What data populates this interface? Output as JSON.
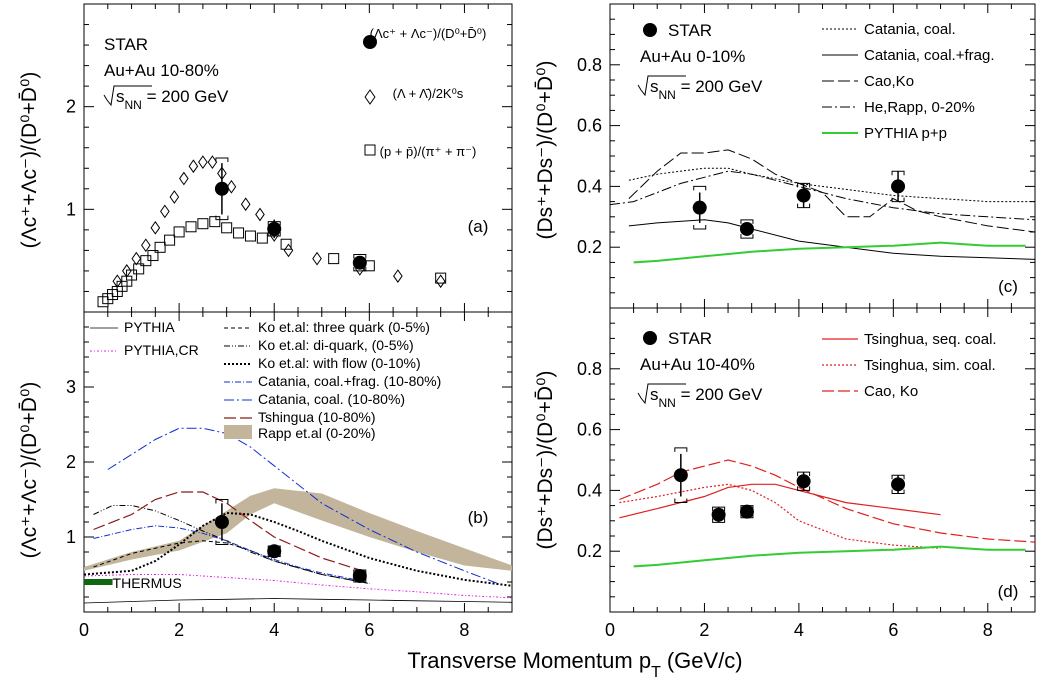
{
  "figure": {
    "xlabel_main": "Transverse Momentum p",
    "xlabel_sub": "T",
    "xlabel_unit": "(GeV/c)"
  },
  "chart_data": [
    {
      "id": "a",
      "type": "scatter",
      "panel_label": "(a)",
      "ylabel": "(Λc⁺+Λc⁻)/(D⁰+D̄⁰)",
      "xlim": [
        0,
        9
      ],
      "ylim": [
        0,
        3
      ],
      "x_ticks": [
        0,
        2,
        4,
        6,
        8
      ],
      "y_ticks": [
        1,
        2
      ],
      "text": {
        "experiment": "STAR",
        "system": "Au+Au 10-80%",
        "energy": "√sNN = 200 GeV"
      },
      "legend": [
        {
          "marker": "filled-circle",
          "label": "(Λc⁺ + Λc⁻)/(D⁰+D̄⁰)"
        },
        {
          "marker": "open-diamond",
          "label": "(Λ + Λ̄)/2K⁰s"
        },
        {
          "marker": "open-square",
          "label": "(p + p̄)/(π⁺ + π⁻)"
        }
      ],
      "series": [
        {
          "name": "(Λc⁺ + Λc⁻)/(D⁰+D̄⁰)",
          "marker": "filled-circle",
          "x": [
            2.9,
            4.0,
            5.8
          ],
          "y": [
            1.2,
            0.81,
            0.48
          ],
          "stat_err": [
            0.25,
            0.09,
            0.06
          ],
          "sys_err": [
            0.3,
            0.07,
            0.08
          ]
        },
        {
          "name": "(Λ + Λ̄)/2K⁰s",
          "marker": "open-diamond",
          "x": [
            0.7,
            0.9,
            1.1,
            1.3,
            1.5,
            1.7,
            1.9,
            2.1,
            2.3,
            2.5,
            2.7,
            2.9,
            3.1,
            3.4,
            3.7,
            4.0,
            4.3,
            4.9,
            5.8,
            6.6,
            7.5
          ],
          "y": [
            0.3,
            0.4,
            0.52,
            0.65,
            0.82,
            0.98,
            1.12,
            1.3,
            1.42,
            1.46,
            1.46,
            1.35,
            1.22,
            1.05,
            0.95,
            0.75,
            0.6,
            0.52,
            0.42,
            0.35,
            0.3
          ]
        },
        {
          "name": "(p + p̄)/(π⁺ + π⁻)",
          "marker": "open-square",
          "x": [
            0.4,
            0.5,
            0.6,
            0.7,
            0.8,
            0.9,
            1.0,
            1.15,
            1.3,
            1.45,
            1.6,
            1.8,
            2.0,
            2.25,
            2.5,
            2.75,
            3.0,
            3.25,
            3.5,
            3.75,
            4.25,
            5.25,
            6.0,
            7.5
          ],
          "y": [
            0.1,
            0.13,
            0.17,
            0.2,
            0.25,
            0.3,
            0.36,
            0.42,
            0.5,
            0.55,
            0.63,
            0.7,
            0.78,
            0.83,
            0.86,
            0.88,
            0.82,
            0.77,
            0.74,
            0.72,
            0.66,
            0.52,
            0.45,
            0.33
          ]
        }
      ]
    },
    {
      "id": "b",
      "type": "line",
      "panel_label": "(b)",
      "ylabel": "(Λc⁺+Λc⁻)/(D⁰+D̄⁰)",
      "xlim": [
        0,
        9
      ],
      "ylim": [
        0,
        4
      ],
      "x_ticks": [
        0,
        2,
        4,
        6,
        8
      ],
      "y_ticks": [
        1,
        2,
        3
      ],
      "thermus": {
        "label": "THERMUS",
        "y": 0.4,
        "x_range": [
          0,
          0.6
        ]
      },
      "data_points": {
        "x": [
          2.9,
          4.0,
          5.8
        ],
        "y": [
          1.2,
          0.81,
          0.48
        ],
        "stat_err": [
          0.25,
          0.09,
          0.06
        ],
        "sys_err": [
          0.3,
          0.07,
          0.08
        ]
      },
      "rapp_band": {
        "name": "Rapp et.al (0-20%)",
        "x": [
          0.0,
          1.0,
          2.0,
          3.0,
          3.5,
          4.0,
          5.0,
          6.0,
          7.0,
          8.0,
          9.0
        ],
        "y_low": [
          0.55,
          0.7,
          0.82,
          1.05,
          1.3,
          1.45,
          1.22,
          1.0,
          0.8,
          0.62,
          0.55
        ],
        "y_high": [
          0.6,
          0.8,
          0.95,
          1.35,
          1.55,
          1.65,
          1.58,
          1.32,
          1.08,
          0.85,
          0.62
        ]
      },
      "series": [
        {
          "name": "PYTHIA",
          "color": "#000000",
          "dash": "solid",
          "width": 0.8,
          "x": [
            0,
            1,
            2,
            3,
            4,
            5,
            6,
            7,
            8,
            9
          ],
          "y": [
            0.12,
            0.14,
            0.16,
            0.17,
            0.18,
            0.17,
            0.16,
            0.15,
            0.14,
            0.13
          ]
        },
        {
          "name": "PYTHIA,CR",
          "color": "#e020e0",
          "dash": "2,2,1,2",
          "width": 1,
          "x": [
            0,
            1,
            2,
            3,
            4,
            5,
            6,
            7,
            8,
            9
          ],
          "y": [
            0.48,
            0.5,
            0.5,
            0.46,
            0.42,
            0.36,
            0.31,
            0.27,
            0.22,
            0.19
          ]
        },
        {
          "name": "Ko et.al: three quark (0-5%)",
          "color": "#000000",
          "dash": "4,3",
          "width": 1,
          "x": [
            0.2,
            1.0,
            2.0,
            2.5,
            3.0,
            3.5,
            4.0,
            5.0,
            6.0
          ],
          "y": [
            0.6,
            0.78,
            0.92,
            0.95,
            0.92,
            0.82,
            0.68,
            0.5,
            0.38
          ]
        },
        {
          "name": "Ko et.al: di-quark, (0-5%)",
          "color": "#000000",
          "dash": "6,2,1,2,1,2",
          "width": 1,
          "x": [
            0.2,
            0.6,
            1.0,
            1.5,
            2.0,
            2.5,
            3.0,
            3.5,
            4.0,
            5.0,
            6.0
          ],
          "y": [
            1.3,
            1.42,
            1.42,
            1.35,
            1.22,
            1.08,
            0.95,
            0.8,
            0.68,
            0.5,
            0.38
          ]
        },
        {
          "name": "Ko et.al: with flow (0-10%)",
          "color": "#000000",
          "dash": "2,2",
          "width": 2,
          "x": [
            0,
            1,
            1.5,
            2.0,
            2.5,
            3.0,
            3.5,
            4.0,
            4.5,
            5.0,
            6.0,
            7.0,
            8.0,
            9.0
          ],
          "y": [
            0.5,
            0.55,
            0.68,
            0.9,
            1.15,
            1.32,
            1.3,
            1.2,
            1.08,
            0.95,
            0.72,
            0.55,
            0.43,
            0.35
          ]
        },
        {
          "name": "Catania, coal.+frag. (10-80%)",
          "color": "#1030d0",
          "dash": "6,2,1,2",
          "width": 1,
          "x": [
            0.2,
            1.0,
            1.5,
            2.0,
            2.5,
            3.0,
            3.5,
            4.0,
            4.5,
            5.0,
            5.8
          ],
          "y": [
            0.98,
            1.1,
            1.15,
            1.12,
            1.05,
            0.95,
            0.82,
            0.7,
            0.6,
            0.52,
            0.42
          ]
        },
        {
          "name": "Catania, coal. (10-80%)",
          "color": "#1030d0",
          "dash": "10,3,2,3",
          "width": 1,
          "x": [
            0.5,
            1.0,
            1.5,
            2.0,
            2.5,
            3.0,
            3.5,
            4.0,
            5.0,
            6.0,
            7.0,
            8.0,
            8.7
          ],
          "y": [
            1.9,
            2.1,
            2.3,
            2.45,
            2.45,
            2.38,
            2.2,
            1.95,
            1.45,
            1.1,
            0.8,
            0.55,
            0.38
          ]
        },
        {
          "name": "Tshingua (10-80%)",
          "color": "#8b1a1a",
          "dash": "12,4",
          "width": 1.2,
          "x": [
            0.2,
            1.0,
            1.5,
            2.0,
            2.5,
            3.0,
            3.5,
            4.0,
            5.0,
            6.0
          ],
          "y": [
            1.1,
            1.3,
            1.5,
            1.6,
            1.6,
            1.45,
            1.22,
            1.0,
            0.72,
            0.52
          ]
        }
      ]
    },
    {
      "id": "c",
      "type": "line",
      "panel_label": "(c)",
      "ylabel": "(Ds⁺+Ds⁻)/(D⁰+D̄⁰)",
      "xlim": [
        0,
        9
      ],
      "ylim": [
        0,
        1
      ],
      "x_ticks": [
        0,
        2,
        4,
        6,
        8
      ],
      "y_ticks": [
        0.2,
        0.4,
        0.6,
        0.8
      ],
      "text": {
        "experiment": "STAR",
        "system": "Au+Au 0-10%",
        "energy": "√sNN = 200 GeV"
      },
      "data_points": {
        "x": [
          1.9,
          2.9,
          4.1,
          6.1
        ],
        "y": [
          0.33,
          0.26,
          0.37,
          0.4
        ],
        "stat_err": [
          0.05,
          0.02,
          0.04,
          0.05
        ],
        "sys_err": [
          0.07,
          0.03,
          0.04,
          0.05
        ]
      },
      "series": [
        {
          "name": "Catania, coal.",
          "color": "#000000",
          "dash": "2,2",
          "width": 1,
          "x": [
            0.4,
            1.0,
            2.0,
            2.5,
            3.0,
            4.0,
            5.0,
            6.0,
            7.0,
            8.0,
            9.0
          ],
          "y": [
            0.42,
            0.44,
            0.46,
            0.46,
            0.44,
            0.41,
            0.39,
            0.37,
            0.36,
            0.35,
            0.35
          ]
        },
        {
          "name": "Catania, coal.+frag.",
          "color": "#000000",
          "dash": "solid",
          "width": 1,
          "x": [
            0.4,
            1.0,
            2.0,
            2.5,
            3.0,
            4.0,
            5.0,
            6.0,
            7.0,
            8.0,
            9.0
          ],
          "y": [
            0.27,
            0.28,
            0.29,
            0.28,
            0.26,
            0.22,
            0.2,
            0.18,
            0.17,
            0.165,
            0.16
          ]
        },
        {
          "name": "Cao,Ko",
          "color": "#000000",
          "dash": "12,4",
          "width": 1,
          "x": [
            0.4,
            1.0,
            1.5,
            2.0,
            2.5,
            3.0,
            3.5,
            4.0,
            4.5,
            5.0,
            5.5,
            6.0,
            6.5,
            7.0,
            8.0,
            9.0
          ],
          "y": [
            0.36,
            0.45,
            0.51,
            0.51,
            0.52,
            0.49,
            0.44,
            0.41,
            0.38,
            0.3,
            0.3,
            0.36,
            0.32,
            0.3,
            0.27,
            0.25
          ]
        },
        {
          "name": "He,Rapp, 0-20%",
          "color": "#000000",
          "dash": "10,3,2,3",
          "width": 1,
          "x": [
            0.0,
            0.5,
            1.0,
            1.5,
            2.0,
            2.5,
            3.0,
            3.5,
            4.0,
            5.0,
            6.0,
            7.0,
            8.0,
            9.0
          ],
          "y": [
            0.34,
            0.35,
            0.38,
            0.41,
            0.43,
            0.45,
            0.44,
            0.42,
            0.4,
            0.36,
            0.33,
            0.31,
            0.3,
            0.29
          ]
        },
        {
          "name": "PYTHIA p+p",
          "color": "#33cc33",
          "dash": "solid",
          "width": 2,
          "x": [
            0.5,
            1.0,
            2.0,
            3.0,
            4.0,
            5.0,
            6.0,
            7.0,
            7.5,
            8.0,
            8.8
          ],
          "y": [
            0.15,
            0.155,
            0.17,
            0.185,
            0.195,
            0.2,
            0.205,
            0.215,
            0.21,
            0.205,
            0.205
          ]
        }
      ]
    },
    {
      "id": "d",
      "type": "line",
      "panel_label": "(d)",
      "ylabel": "(Ds⁺+Ds⁻)/(D⁰+D̄⁰)",
      "xlim": [
        0,
        9
      ],
      "ylim": [
        0,
        1
      ],
      "x_ticks": [
        0,
        2,
        4,
        6,
        8
      ],
      "y_ticks": [
        0.2,
        0.4,
        0.6,
        0.8
      ],
      "text": {
        "experiment": "STAR",
        "system": "Au+Au 10-40%",
        "energy": "√sNN = 200 GeV"
      },
      "data_points": {
        "x": [
          1.5,
          2.3,
          2.9,
          4.1,
          6.1
        ],
        "y": [
          0.45,
          0.32,
          0.33,
          0.43,
          0.42
        ],
        "stat_err": [
          0.07,
          0.025,
          0.02,
          0.03,
          0.03
        ],
        "sys_err": [
          0.09,
          0.025,
          0.02,
          0.03,
          0.03
        ]
      },
      "series": [
        {
          "name": "Tsinghua, seq. coal.",
          "color": "#e02020",
          "dash": "solid",
          "width": 1.2,
          "x": [
            0.2,
            1.0,
            2.0,
            2.5,
            3.0,
            3.5,
            4.0,
            5.0,
            6.0,
            7.0
          ],
          "y": [
            0.31,
            0.34,
            0.38,
            0.41,
            0.42,
            0.42,
            0.4,
            0.36,
            0.34,
            0.32
          ]
        },
        {
          "name": "Tsinghua, sim. coal.",
          "color": "#e02020",
          "dash": "2,2",
          "width": 1.2,
          "x": [
            0.2,
            1.0,
            2.0,
            2.5,
            3.0,
            3.5,
            4.0,
            5.0,
            6.0,
            7.0
          ],
          "y": [
            0.36,
            0.38,
            0.41,
            0.42,
            0.4,
            0.36,
            0.3,
            0.24,
            0.22,
            0.21
          ]
        },
        {
          "name": "Cao, Ko",
          "color": "#e02020",
          "dash": "12,4",
          "width": 1.2,
          "x": [
            0.2,
            1.0,
            1.5,
            2.0,
            2.5,
            3.0,
            3.5,
            4.0,
            5.0,
            6.0,
            7.0,
            8.0,
            9.0
          ],
          "y": [
            0.37,
            0.42,
            0.46,
            0.48,
            0.5,
            0.48,
            0.45,
            0.41,
            0.34,
            0.29,
            0.26,
            0.24,
            0.23
          ]
        },
        {
          "name": "PYTHIA p+p",
          "color": "#33cc33",
          "dash": "solid",
          "width": 2,
          "x": [
            0.5,
            1.0,
            2.0,
            3.0,
            4.0,
            5.0,
            6.0,
            7.0,
            7.5,
            8.0,
            8.8
          ],
          "y": [
            0.15,
            0.155,
            0.17,
            0.185,
            0.195,
            0.2,
            0.205,
            0.215,
            0.21,
            0.205,
            0.205
          ]
        }
      ]
    }
  ]
}
